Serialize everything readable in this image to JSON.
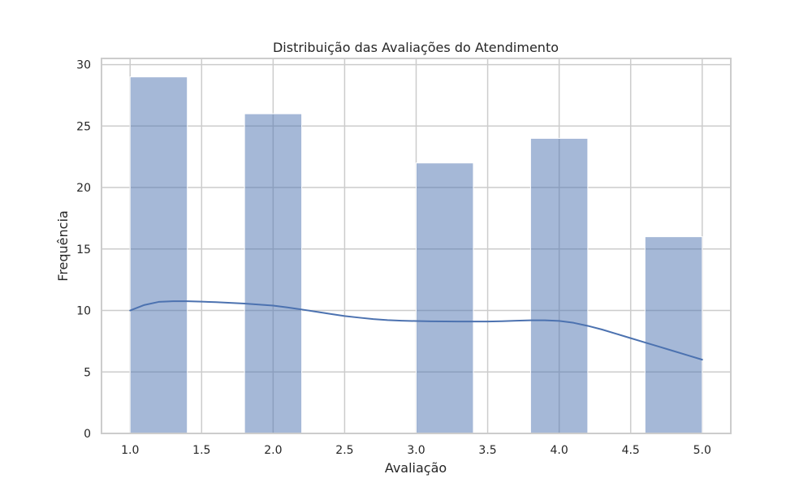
{
  "chart_data": {
    "type": "bar",
    "title": "Distribuição das Avaliações do Atendimento",
    "xlabel": "Avaliação",
    "ylabel": "Frequência",
    "xlim": [
      0.8,
      5.2
    ],
    "ylim": [
      0,
      30.5
    ],
    "x_ticks": [
      1.0,
      1.5,
      2.0,
      2.5,
      3.0,
      3.5,
      4.0,
      4.5,
      5.0
    ],
    "y_ticks": [
      0,
      5,
      10,
      15,
      20,
      25,
      30
    ],
    "grid": true,
    "bins": [
      {
        "x0": 1.0,
        "x1": 1.4,
        "count": 29
      },
      {
        "x0": 1.4,
        "x1": 1.8,
        "count": 0
      },
      {
        "x0": 1.8,
        "x1": 2.2,
        "count": 26
      },
      {
        "x0": 2.2,
        "x1": 2.6,
        "count": 0
      },
      {
        "x0": 2.6,
        "x1": 3.0,
        "count": 0
      },
      {
        "x0": 3.0,
        "x1": 3.4,
        "count": 22
      },
      {
        "x0": 3.4,
        "x1": 3.8,
        "count": 0
      },
      {
        "x0": 3.8,
        "x1": 4.2,
        "count": 24
      },
      {
        "x0": 4.2,
        "x1": 4.6,
        "count": 0
      },
      {
        "x0": 4.6,
        "x1": 5.0,
        "count": 16
      }
    ],
    "kde": {
      "x": [
        1.0,
        1.1,
        1.2,
        1.3,
        1.4,
        1.5,
        1.6,
        1.7,
        1.8,
        1.9,
        2.0,
        2.1,
        2.2,
        2.3,
        2.4,
        2.5,
        2.6,
        2.7,
        2.8,
        2.9,
        3.0,
        3.1,
        3.2,
        3.3,
        3.4,
        3.5,
        3.6,
        3.7,
        3.8,
        3.9,
        4.0,
        4.1,
        4.2,
        4.3,
        4.4,
        4.5,
        4.6,
        4.7,
        4.8,
        4.9,
        5.0
      ],
      "y": [
        10.0,
        10.45,
        10.7,
        10.75,
        10.75,
        10.72,
        10.68,
        10.62,
        10.56,
        10.48,
        10.4,
        10.25,
        10.08,
        9.9,
        9.72,
        9.55,
        9.42,
        9.3,
        9.22,
        9.17,
        9.14,
        9.12,
        9.11,
        9.1,
        9.1,
        9.1,
        9.13,
        9.17,
        9.2,
        9.2,
        9.15,
        9.0,
        8.75,
        8.45,
        8.1,
        7.75,
        7.4,
        7.05,
        6.7,
        6.35,
        6.0
      ]
    },
    "colors": {
      "bar_fill": "#4c72b0",
      "bar_opacity": 0.5,
      "line": "#4c72b0",
      "grid": "#cccccc",
      "frame": "#cccccc"
    }
  }
}
